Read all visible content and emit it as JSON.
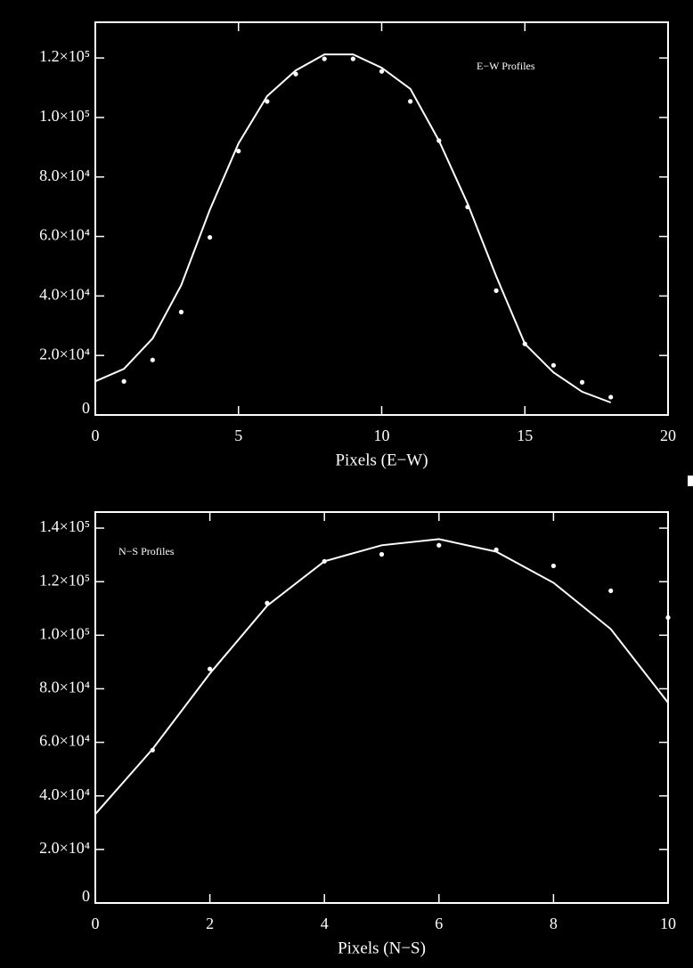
{
  "chart_data": [
    {
      "type": "line",
      "annotation": "E−W Profiles",
      "x_label": "Pixels (E−W)",
      "xlim": [
        0,
        20
      ],
      "xticks": [
        0,
        5,
        10,
        15,
        20
      ],
      "ylim": [
        0,
        132000
      ],
      "yticks": [
        0,
        {
          "value": 20000,
          "label": "2.0×10⁴"
        },
        {
          "value": 40000,
          "label": "4.0×10⁴"
        },
        {
          "value": 60000,
          "label": "6.0×10⁴"
        },
        {
          "value": 80000,
          "label": "8.0×10⁴"
        },
        {
          "value": 100000,
          "label": "1.0×10⁵"
        },
        {
          "value": 120000,
          "label": "1.2×10⁵"
        }
      ],
      "series": [
        {
          "mode": "markers",
          "color": "#ffffff",
          "x": [
            1,
            2,
            3,
            4,
            5,
            6,
            7,
            8,
            9,
            10,
            11,
            12,
            13,
            14,
            15,
            16,
            17,
            18
          ],
          "values": [
            11300,
            18500,
            34600,
            59700,
            88700,
            105400,
            114600,
            119700,
            119700,
            115500,
            105400,
            92200,
            69900,
            41800,
            23900,
            16700,
            11000,
            6000
          ]
        },
        {
          "mode": "lines",
          "color": "#ffffff",
          "x": [
            0,
            1,
            2,
            3,
            4,
            5,
            6,
            7,
            8,
            9,
            10,
            11,
            12,
            13,
            14,
            15,
            16,
            17,
            18
          ],
          "values": [
            11300,
            15500,
            25700,
            43600,
            69000,
            91300,
            107200,
            115800,
            121200,
            121200,
            116700,
            109600,
            92200,
            71000,
            46600,
            23900,
            14300,
            7800,
            4200
          ]
        }
      ]
    },
    {
      "type": "line",
      "annotation": "N−S Profiles",
      "x_label": "Pixels (N−S)",
      "xlim": [
        0,
        10
      ],
      "xticks": [
        0,
        2,
        4,
        6,
        8,
        10
      ],
      "ylim": [
        0,
        146000
      ],
      "yticks": [
        0,
        {
          "value": 20000,
          "label": "2.0×10⁴"
        },
        {
          "value": 40000,
          "label": "4.0×10⁴"
        },
        {
          "value": 60000,
          "label": "6.0×10⁴"
        },
        {
          "value": 80000,
          "label": "8.0×10⁴"
        },
        {
          "value": 100000,
          "label": "1.0×10⁵"
        },
        {
          "value": 120000,
          "label": "1.2×10⁵"
        },
        {
          "value": 140000,
          "label": "1.4×10⁵"
        }
      ],
      "series": [
        {
          "mode": "markers",
          "color": "#ffffff",
          "x": [
            1,
            2,
            3,
            4,
            5,
            6,
            7,
            8,
            9,
            10
          ],
          "values": [
            57100,
            87400,
            112000,
            127600,
            130200,
            133600,
            131900,
            125900,
            116600,
            106600
          ]
        },
        {
          "mode": "lines",
          "color": "#ffffff",
          "x": [
            0,
            1,
            2,
            3,
            4,
            5,
            6,
            7,
            8,
            9,
            10
          ],
          "values": [
            33200,
            57500,
            85700,
            111000,
            127600,
            133600,
            135900,
            131200,
            119600,
            102300,
            74800
          ]
        }
      ]
    }
  ]
}
